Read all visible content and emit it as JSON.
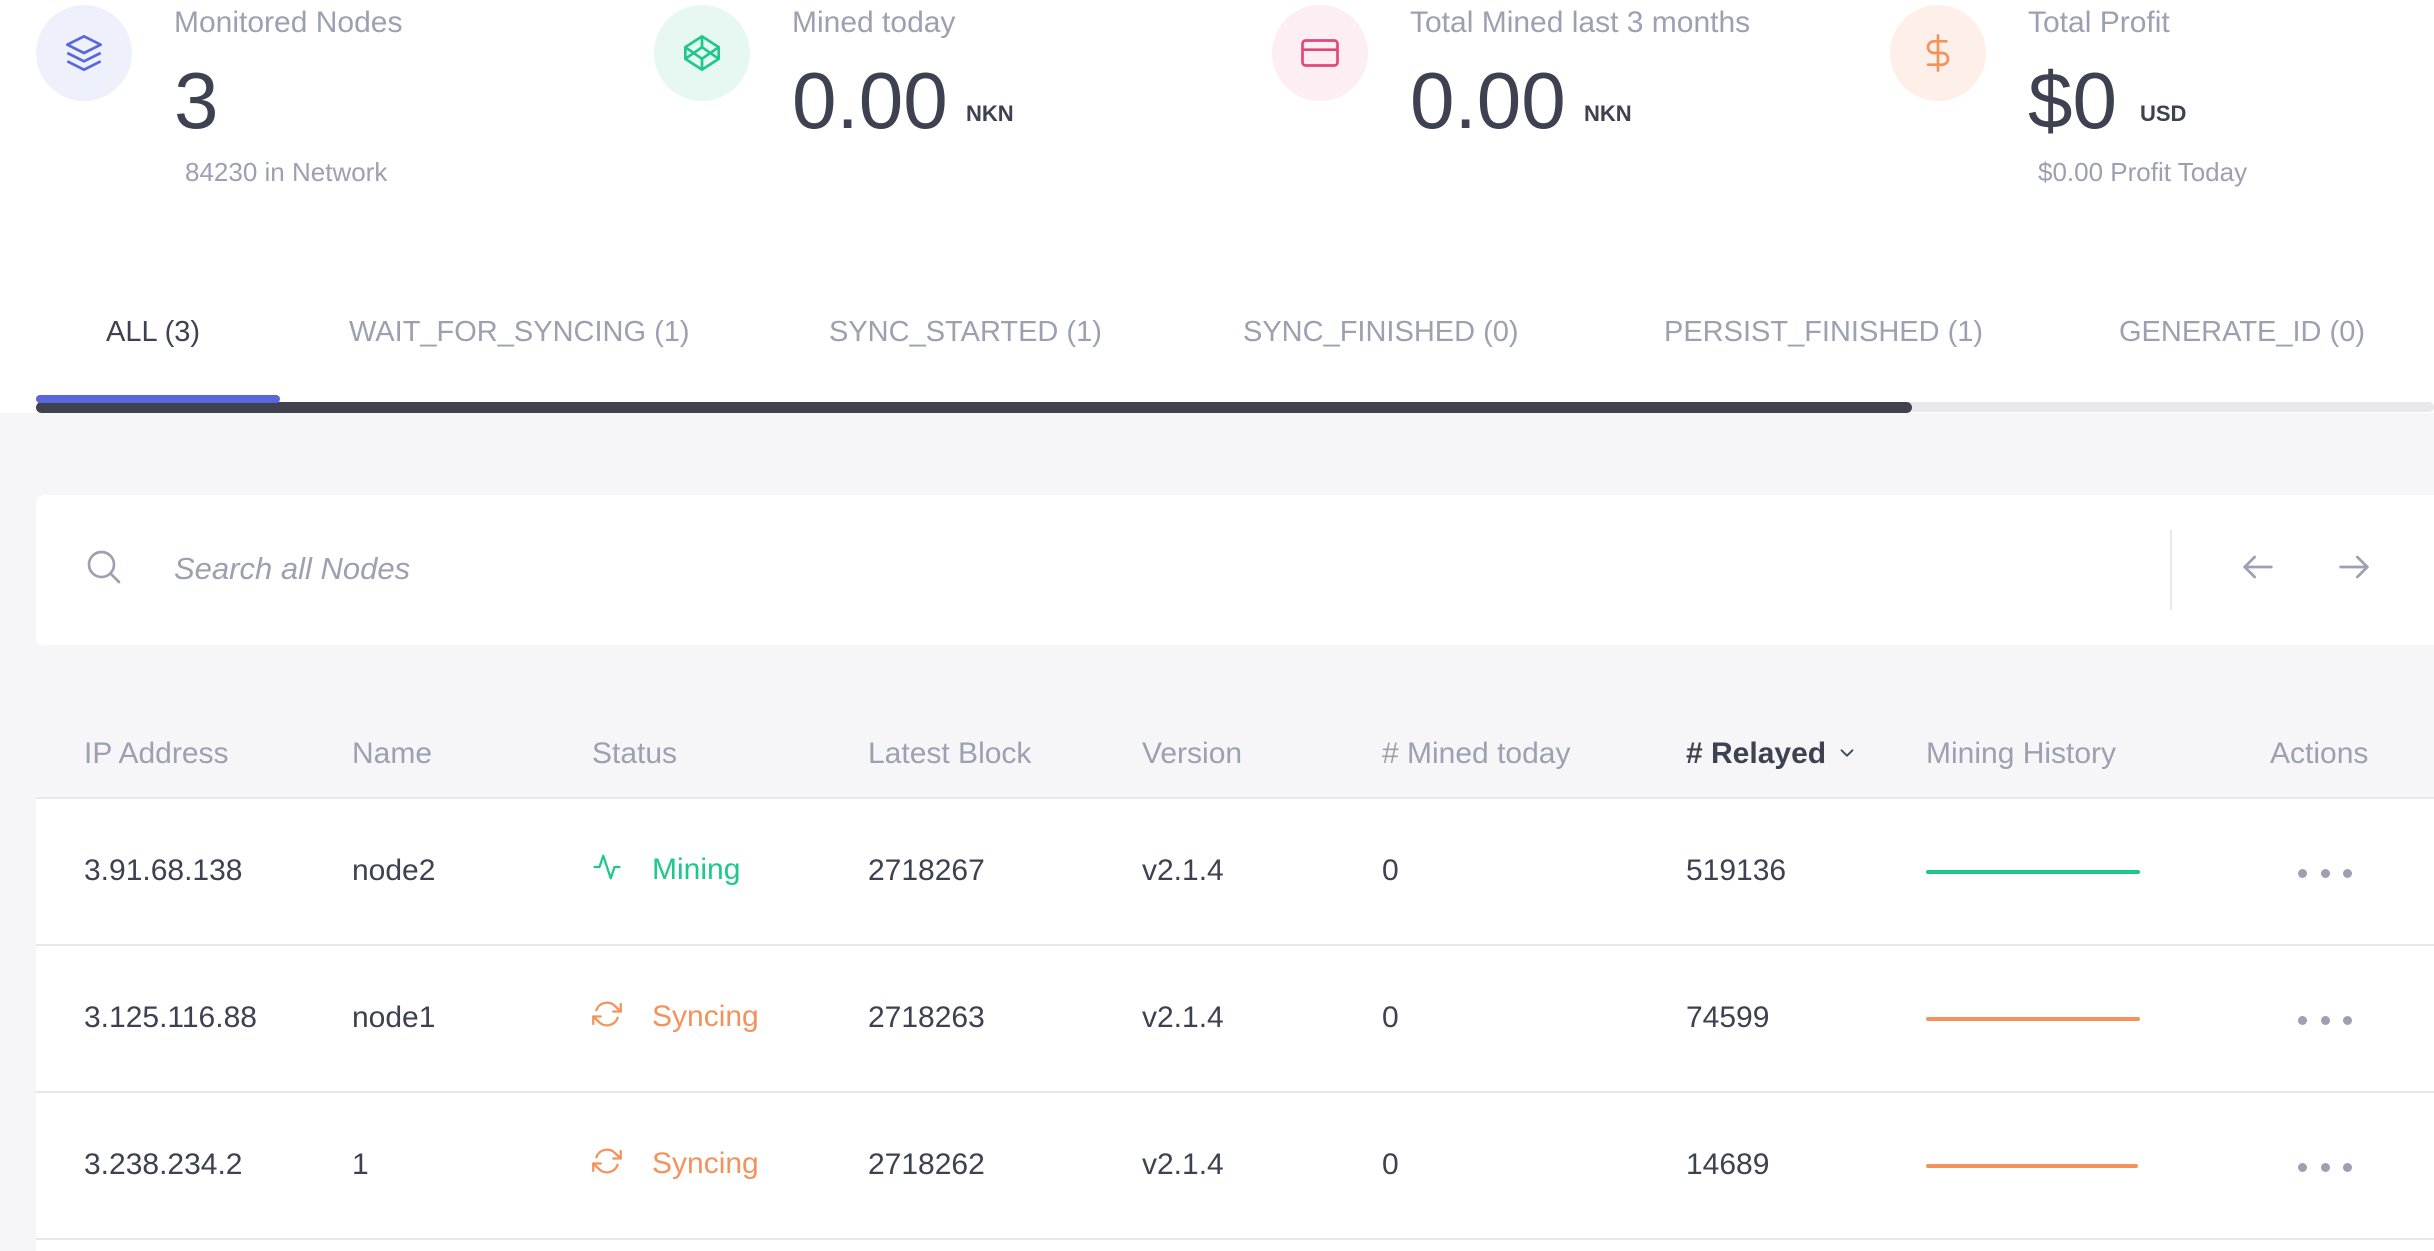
{
  "stats": [
    {
      "label": "Monitored Nodes",
      "value": "3",
      "unit": "",
      "sub": "84230 in Network",
      "icon": "layers-icon",
      "color": "#5867dd",
      "bg": "#eef0fc"
    },
    {
      "label": "Mined today",
      "value": "0.00",
      "unit": "NKN",
      "sub": "",
      "icon": "codepen-icon",
      "color": "#1cc88a",
      "bg": "#e6f8f1"
    },
    {
      "label": "Total Mined last 3 months",
      "value": "0.00",
      "unit": "NKN",
      "sub": "",
      "icon": "credit-card-icon",
      "color": "#e0457b",
      "bg": "#fdeef3"
    },
    {
      "label": "Total Profit",
      "value": "$0",
      "unit": "USD",
      "sub": "$0.00 Profit Today",
      "icon": "dollar-icon",
      "color": "#f4925b",
      "bg": "#fef0e8"
    }
  ],
  "tabs": [
    {
      "label": "ALL (3)",
      "active": true
    },
    {
      "label": "WAIT_FOR_SYNCING (1)",
      "active": false
    },
    {
      "label": "SYNC_STARTED (1)",
      "active": false
    },
    {
      "label": "SYNC_FINISHED (0)",
      "active": false
    },
    {
      "label": "PERSIST_FINISHED (1)",
      "active": false
    },
    {
      "label": "GENERATE_ID (0)",
      "active": false
    }
  ],
  "search": {
    "placeholder": "Search all Nodes",
    "value": ""
  },
  "table": {
    "columns": [
      "IP Address",
      "Name",
      "Status",
      "Latest Block",
      "Version",
      "# Mined today",
      "# Relayed",
      "Mining History",
      "Actions"
    ],
    "sorted_column": "# Relayed",
    "rows": [
      {
        "ip": "3.91.68.138",
        "name": "node2",
        "status": "Mining",
        "status_icon": "activity-icon",
        "status_color": "#1cc88a",
        "latest_block": "2718267",
        "version": "v2.1.4",
        "mined_today": "0",
        "relayed": "519136",
        "history_color": "#1cc88a"
      },
      {
        "ip": "3.125.116.88",
        "name": "node1",
        "status": "Syncing",
        "status_icon": "refresh-icon",
        "status_color": "#f4925b",
        "latest_block": "2718263",
        "version": "v2.1.4",
        "mined_today": "0",
        "relayed": "74599",
        "history_color": "#f4925b"
      },
      {
        "ip": "3.238.234.2",
        "name": "1",
        "status": "Syncing",
        "status_icon": "refresh-icon",
        "status_color": "#f4925b",
        "latest_block": "2718262",
        "version": "v2.1.4",
        "mined_today": "0",
        "relayed": "14689",
        "history_color": "#f4925b"
      }
    ]
  }
}
